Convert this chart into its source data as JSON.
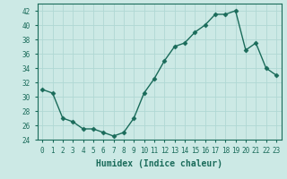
{
  "x": [
    0,
    1,
    2,
    3,
    4,
    5,
    6,
    7,
    8,
    9,
    10,
    11,
    12,
    13,
    14,
    15,
    16,
    17,
    18,
    19,
    20,
    21,
    22,
    23
  ],
  "y": [
    31,
    30.5,
    27,
    26.5,
    25.5,
    25.5,
    25,
    24.5,
    25,
    27,
    30.5,
    32.5,
    35,
    37,
    37.5,
    39,
    40,
    41.5,
    41.5,
    42,
    36.5,
    37.5,
    34,
    33
  ],
  "line_color": "#1a6b5a",
  "marker": "D",
  "marker_size": 2.5,
  "bg_color": "#cce9e5",
  "grid_color": "#b0d8d4",
  "xlabel": "Humidex (Indice chaleur)",
  "ylim": [
    24,
    43
  ],
  "xlim": [
    -0.5,
    23.5
  ],
  "yticks": [
    24,
    26,
    28,
    30,
    32,
    34,
    36,
    38,
    40,
    42
  ],
  "xticks": [
    0,
    1,
    2,
    3,
    4,
    5,
    6,
    7,
    8,
    9,
    10,
    11,
    12,
    13,
    14,
    15,
    16,
    17,
    18,
    19,
    20,
    21,
    22,
    23
  ],
  "font_color": "#1a6b5a",
  "tick_fontsize": 5.5,
  "xlabel_fontsize": 7.0,
  "linewidth": 1.0
}
